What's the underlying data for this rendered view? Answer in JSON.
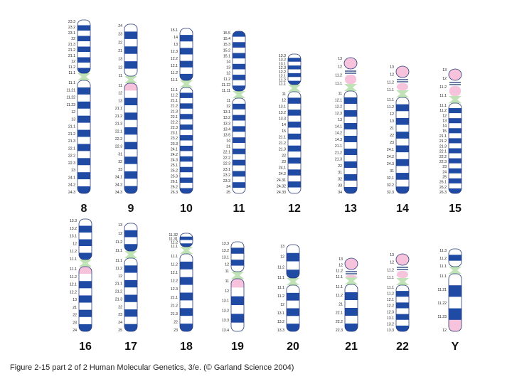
{
  "caption": "Figure 2-15 part 2 of 2  Human Molecular Genetics, 3/e.  (© Garland Science 2004)",
  "colors": {
    "dark_band": "#1f4ba5",
    "light_band": "#ffffff",
    "centromere": "#bfe3b4",
    "heterochromatin": "#f6c2dc",
    "stalk": "#0a2a6a",
    "outline": "#2a3b7a"
  },
  "chromosomes": [
    {
      "id": "8",
      "label": "8",
      "p_arm_labels": [
        "23.3",
        "23.2",
        "23.1",
        "22",
        "21.3",
        "21.2",
        "21.1",
        "12",
        "11.2",
        "11.1"
      ],
      "q_arm_labels": [
        "11.1",
        "11.21",
        "11.22",
        "11.23",
        "12",
        "13",
        "21.1",
        "21.2",
        "21.3",
        "22.1",
        "22.2",
        "22.3",
        "23",
        "24.1",
        "24.2",
        "24.3"
      ],
      "p_bands": [
        "L",
        "D",
        "L",
        "D",
        "L",
        "D",
        "L",
        "D",
        "L",
        "D"
      ],
      "q_bands": [
        "L",
        "D",
        "L",
        "D",
        "L",
        "D",
        "L",
        "D",
        "L",
        "D",
        "L",
        "D",
        "L",
        "D",
        "L",
        "D"
      ]
    },
    {
      "id": "9",
      "label": "9",
      "p_arm_labels": [
        "24",
        "23",
        "22",
        "21",
        "13",
        "12",
        "11"
      ],
      "q_arm_labels": [
        "11",
        "12",
        "13",
        "21.1",
        "21.2",
        "21.3",
        "22.1",
        "22.2",
        "22.3",
        "31",
        "32",
        "33",
        "34.1",
        "34.2",
        "34.3"
      ],
      "p_bands": [
        "L",
        "D",
        "L",
        "D",
        "L",
        "D",
        "L"
      ],
      "q_bands": [
        "H",
        "L",
        "D",
        "L",
        "D",
        "L",
        "D",
        "L",
        "D",
        "L",
        "D",
        "L",
        "D",
        "L",
        "D"
      ]
    },
    {
      "id": "10",
      "label": "10",
      "p_arm_labels": [
        "15.1",
        "14",
        "13",
        "12.3",
        "12.2",
        "12.1",
        "11.2",
        "11.1"
      ],
      "q_arm_labels": [
        "11.1",
        "11.2",
        "21.1",
        "21.2",
        "21.3",
        "22.1",
        "22.2",
        "22.3",
        "23.1",
        "23.2",
        "23.3",
        "24.1",
        "24.2",
        "24.3",
        "25.1",
        "25.2",
        "25.3",
        "26.1",
        "26.2",
        "26.3"
      ],
      "p_bands": [
        "L",
        "D",
        "L",
        "D",
        "L",
        "D",
        "L",
        "D"
      ],
      "q_bands": [
        "L",
        "D",
        "L",
        "D",
        "L",
        "D",
        "L",
        "D",
        "L",
        "D",
        "L",
        "D",
        "L",
        "D",
        "L",
        "D",
        "L",
        "D",
        "L",
        "D"
      ]
    },
    {
      "id": "11",
      "label": "11",
      "p_arm_labels": [
        "15.5",
        "15.4",
        "15.3",
        "15.2",
        "15.1",
        "14",
        "13",
        "12",
        "11.2",
        "11.12",
        "11.11"
      ],
      "q_arm_labels": [
        "11",
        "12",
        "13.1",
        "13.2",
        "13.3",
        "13.4",
        "13.5",
        "14",
        "21",
        "22.1",
        "22.2",
        "22.3",
        "23.1",
        "23.2",
        "23.3",
        "24",
        "25"
      ],
      "p_bands": [
        "D",
        "L",
        "D",
        "L",
        "D",
        "L",
        "D",
        "L",
        "D",
        "L",
        "D"
      ],
      "q_bands": [
        "L",
        "D",
        "L",
        "D",
        "L",
        "D",
        "L",
        "D",
        "L",
        "D",
        "L",
        "D",
        "L",
        "D",
        "L",
        "D",
        "L"
      ]
    },
    {
      "id": "12",
      "label": "12",
      "p_arm_labels": [
        "13.3",
        "13.2",
        "13.1",
        "12.3",
        "12.2",
        "12.1",
        "11.2",
        "11.1"
      ],
      "q_arm_labels": [
        "11",
        "12",
        "13.1",
        "13.2",
        "13.3",
        "14",
        "15",
        "21.1",
        "21.2",
        "21.3",
        "22",
        "23",
        "24.1",
        "24.2",
        "24.31",
        "24.32",
        "24.33"
      ],
      "p_bands": [
        "L",
        "D",
        "L",
        "D",
        "L",
        "D",
        "L",
        "D"
      ],
      "q_bands": [
        "L",
        "D",
        "L",
        "D",
        "L",
        "D",
        "L",
        "D",
        "L",
        "D",
        "L",
        "D",
        "L",
        "D",
        "L",
        "D",
        "L"
      ]
    },
    {
      "id": "13",
      "label": "13",
      "p_arm_labels": [
        "13",
        "12",
        "11.2",
        "11.1"
      ],
      "q_arm_labels": [
        "11",
        "12.1",
        "12.2",
        "12.3",
        "13",
        "14.1",
        "14.2",
        "14.3",
        "21.1",
        "21.2",
        "21.3",
        "22",
        "31",
        "32",
        "33",
        "34"
      ],
      "p_bands": [
        "S",
        "S",
        "S",
        "S"
      ],
      "q_bands": [
        "L",
        "D",
        "L",
        "D",
        "L",
        "D",
        "L",
        "D",
        "L",
        "D",
        "L",
        "D",
        "L",
        "D",
        "L",
        "D"
      ]
    },
    {
      "id": "14",
      "label": "14",
      "p_arm_labels": [
        "13",
        "12",
        "11.2",
        "11.1"
      ],
      "q_arm_labels": [
        "11.1",
        "11.2",
        "12",
        "13",
        "21",
        "22",
        "23",
        "24.1",
        "24.2",
        "24.3",
        "31",
        "32.1",
        "32.2",
        "32.3"
      ],
      "p_bands": [
        "S",
        "S",
        "S",
        "S"
      ],
      "q_bands": [
        "L",
        "D",
        "L",
        "D",
        "L",
        "D",
        "L",
        "D",
        "L",
        "D",
        "L",
        "D",
        "L",
        "D"
      ]
    },
    {
      "id": "15",
      "label": "15",
      "p_arm_labels": [
        "13",
        "12",
        "11.2",
        "11.1"
      ],
      "q_arm_labels": [
        "11.1",
        "11.2",
        "12",
        "13",
        "14",
        "15",
        "21.1",
        "21.2",
        "21.3",
        "22.1",
        "22.2",
        "22.3",
        "23",
        "24",
        "25",
        "26.1",
        "26.2",
        "26.3"
      ],
      "p_bands": [
        "S",
        "S",
        "S",
        "S"
      ],
      "q_bands": [
        "L",
        "D",
        "L",
        "D",
        "L",
        "D",
        "L",
        "D",
        "L",
        "D",
        "L",
        "D",
        "L",
        "D",
        "L",
        "D",
        "L",
        "D"
      ]
    },
    {
      "id": "16",
      "label": "16",
      "p_arm_labels": [
        "13.3",
        "13.2",
        "13.1",
        "12",
        "11.2",
        "11.1"
      ],
      "q_arm_labels": [
        "11.1",
        "11.2",
        "12.1",
        "12.2",
        "13",
        "21",
        "22",
        "23",
        "24"
      ],
      "p_bands": [
        "L",
        "D",
        "L",
        "D",
        "L",
        "D"
      ],
      "q_bands": [
        "H",
        "L",
        "D",
        "L",
        "D",
        "L",
        "D",
        "L",
        "D"
      ]
    },
    {
      "id": "17",
      "label": "17",
      "p_arm_labels": [
        "13",
        "12",
        "11.2",
        "11.1"
      ],
      "q_arm_labels": [
        "11.1",
        "11.2",
        "12",
        "21.1",
        "21.2",
        "21.3",
        "22",
        "23",
        "24",
        "25"
      ],
      "p_bands": [
        "L",
        "D",
        "L",
        "D"
      ],
      "q_bands": [
        "L",
        "D",
        "L",
        "D",
        "L",
        "D",
        "L",
        "D",
        "L",
        "D"
      ]
    },
    {
      "id": "18",
      "label": "18",
      "p_arm_labels": [
        "11.32",
        "11.31",
        "11.2",
        "11.1"
      ],
      "q_arm_labels": [
        "11.1",
        "11.2",
        "12.1",
        "12.2",
        "12.3",
        "21.1",
        "21.2",
        "21.3",
        "22",
        "23"
      ],
      "p_bands": [
        "L",
        "D",
        "L",
        "D"
      ],
      "q_bands": [
        "L",
        "D",
        "L",
        "D",
        "L",
        "D",
        "L",
        "D",
        "L",
        "D"
      ]
    },
    {
      "id": "19",
      "label": "19",
      "p_arm_labels": [
        "13.3",
        "13.2",
        "13.1",
        "12",
        "11"
      ],
      "q_arm_labels": [
        "11",
        "12",
        "13.1",
        "13.2",
        "13.3",
        "13.4"
      ],
      "p_bands": [
        "L",
        "D",
        "L",
        "D",
        "L"
      ],
      "q_bands": [
        "H",
        "L",
        "D",
        "L",
        "D",
        "L"
      ]
    },
    {
      "id": "20",
      "label": "20",
      "p_arm_labels": [
        "13",
        "12",
        "11.2",
        "11.1"
      ],
      "q_arm_labels": [
        "11.1",
        "11.2",
        "12",
        "13.1",
        "13.2",
        "13.3"
      ],
      "p_bands": [
        "L",
        "D",
        "L",
        "D"
      ],
      "q_bands": [
        "L",
        "D",
        "L",
        "D",
        "L",
        "D"
      ]
    },
    {
      "id": "21",
      "label": "21",
      "p_arm_labels": [
        "13",
        "12",
        "11.2",
        "11.1"
      ],
      "q_arm_labels": [
        "11.1",
        "11.2",
        "21",
        "22.1",
        "22.2",
        "22.3"
      ],
      "p_bands": [
        "S",
        "S",
        "S",
        "S"
      ],
      "q_bands": [
        "L",
        "D",
        "L",
        "D",
        "L",
        "D"
      ]
    },
    {
      "id": "22",
      "label": "22",
      "p_arm_labels": [
        "13",
        "12",
        "11.2",
        "11.1"
      ],
      "q_arm_labels": [
        "11.1",
        "11.2",
        "12.1",
        "12.2",
        "12.3",
        "13.1",
        "13.2",
        "13.3"
      ],
      "p_bands": [
        "S",
        "S",
        "S",
        "S"
      ],
      "q_bands": [
        "L",
        "D",
        "L",
        "D",
        "L",
        "D",
        "L",
        "D"
      ]
    },
    {
      "id": "Y",
      "label": "Y",
      "p_arm_labels": [
        "11.3",
        "11.2",
        "11.1"
      ],
      "q_arm_labels": [
        "11.1",
        "11.21",
        "11.22",
        "11.23",
        "12"
      ],
      "p_bands": [
        "L",
        "D",
        "L"
      ],
      "q_bands": [
        "L",
        "D",
        "L",
        "D",
        "H"
      ]
    }
  ]
}
